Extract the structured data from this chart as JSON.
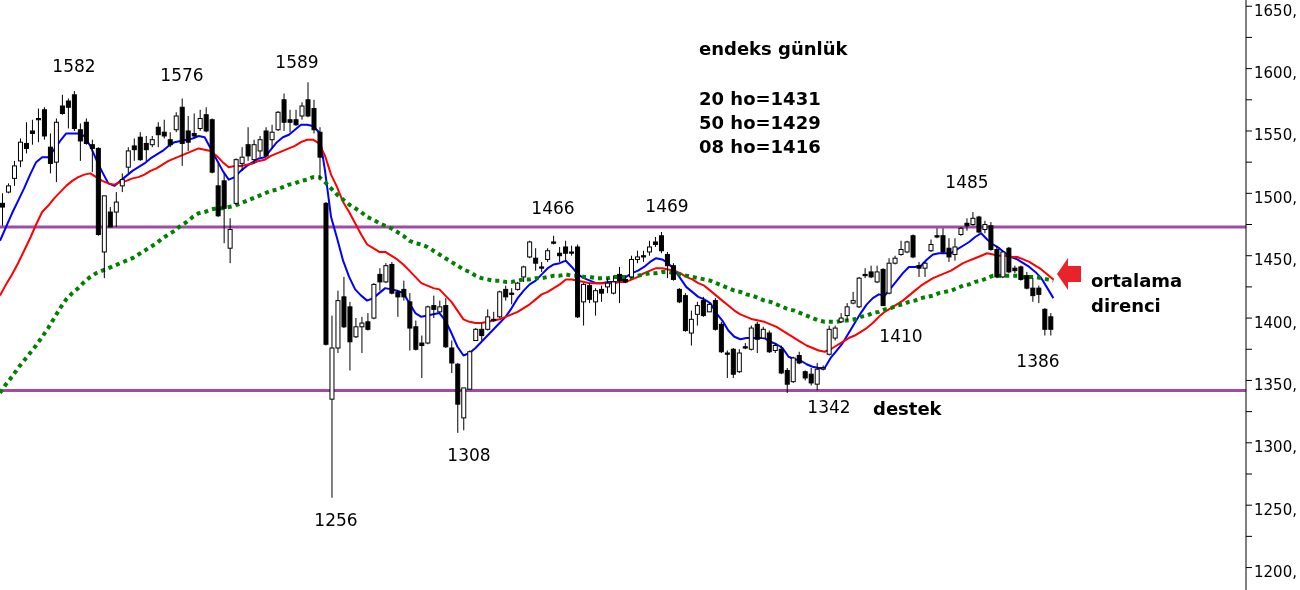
{
  "chart_data": {
    "type": "candlestick",
    "categories": [
      null,
      null,
      null,
      null,
      null,
      null,
      null,
      null,
      null,
      null,
      null,
      null,
      null,
      null,
      null,
      null,
      null,
      null,
      null,
      null,
      null,
      null,
      null,
      null,
      null,
      null,
      null,
      null,
      null,
      null,
      null,
      null,
      null,
      null,
      null,
      null,
      null,
      null,
      null,
      null,
      null,
      null,
      null,
      null,
      null,
      null,
      null,
      null,
      null,
      null,
      null,
      null,
      null,
      null,
      null,
      null,
      null,
      null,
      null,
      null,
      null,
      null,
      null,
      null,
      null,
      null,
      null,
      null,
      null,
      null,
      null,
      null,
      null,
      null,
      null,
      null,
      null,
      null,
      null,
      null,
      null,
      null,
      null,
      null,
      null,
      null,
      null,
      null,
      null,
      null,
      null,
      null,
      null,
      null,
      null,
      null,
      null,
      null,
      null,
      null,
      null,
      null,
      null,
      null,
      null,
      null,
      null,
      null,
      null,
      null,
      null,
      null,
      null,
      null,
      null,
      null,
      null,
      null,
      null,
      null,
      null,
      null,
      null,
      null,
      null,
      null,
      null,
      null,
      null,
      null,
      null,
      null,
      null,
      null,
      null,
      null,
      null,
      null,
      null,
      null,
      null,
      null,
      null,
      null,
      null,
      null,
      null,
      null,
      null,
      null,
      null,
      null,
      null,
      null,
      null,
      null,
      null,
      null,
      null,
      null,
      null,
      null,
      null,
      null,
      null,
      null,
      null,
      null,
      null,
      null,
      null,
      null,
      null,
      null,
      null,
      null,
      null,
      null,
      null,
      null,
      null,
      null,
      null,
      null,
      null,
      null,
      null,
      null,
      null,
      null,
      null,
      null,
      null,
      null,
      null,
      null,
      null,
      null,
      null,
      null,
      null,
      null,
      null,
      null,
      null,
      null,
      null,
      null
    ],
    "ohlc": [
      [
        1492,
        1500,
        1474,
        1489
      ],
      [
        1501,
        1508,
        1500,
        1506
      ],
      [
        1512,
        1526,
        1506,
        1522
      ],
      [
        1526,
        1544,
        1521,
        1541
      ],
      [
        1540,
        1557,
        1532,
        1536
      ],
      [
        1550,
        1559,
        1539,
        1548
      ],
      [
        1560,
        1568,
        1541,
        1559
      ],
      [
        1567,
        1569,
        1543,
        1546
      ],
      [
        1537,
        1548,
        1516,
        1524
      ],
      [
        1525,
        1560,
        1509,
        1557
      ],
      [
        1570,
        1579,
        1563,
        1564
      ],
      [
        1574,
        1576,
        1552,
        1569
      ],
      [
        1579,
        1582,
        1550,
        1552
      ],
      [
        1551,
        1556,
        1526,
        1542
      ],
      [
        1557,
        1560,
        1539,
        1540
      ],
      [
        1539,
        1543,
        1517,
        1536
      ],
      [
        1536,
        1537,
        1466,
        1467
      ],
      [
        1453,
        1498,
        1432,
        1498
      ],
      [
        1485,
        1489,
        1473,
        1473
      ],
      [
        1485,
        1501,
        1473,
        1493
      ],
      [
        1506,
        1516,
        1501,
        1511
      ],
      [
        1521,
        1537,
        1516,
        1534
      ],
      [
        1538,
        1544,
        1526,
        1535
      ],
      [
        1545,
        1549,
        1526,
        1527
      ],
      [
        1540,
        1546,
        1526,
        1535
      ],
      [
        1539,
        1546,
        1537,
        1543
      ],
      [
        1553,
        1557,
        1537,
        1547
      ],
      [
        1549,
        1559,
        1544,
        1546
      ],
      [
        1543,
        1549,
        1537,
        1539
      ],
      [
        1551,
        1565,
        1549,
        1562
      ],
      [
        1569,
        1576,
        1522,
        1540
      ],
      [
        1550,
        1562,
        1534,
        1541
      ],
      [
        1548,
        1564,
        1545,
        1546
      ],
      [
        1552,
        1567,
        1550,
        1560
      ],
      [
        1563,
        1569,
        1549,
        1550
      ],
      [
        1559,
        1560,
        1516,
        1517
      ],
      [
        1506,
        1524,
        1481,
        1482
      ],
      [
        1510,
        1516,
        1460,
        1488
      ],
      [
        1456,
        1480,
        1444,
        1471
      ],
      [
        1492,
        1528,
        1491,
        1527
      ],
      [
        1524,
        1537,
        1518,
        1529
      ],
      [
        1539,
        1553,
        1526,
        1530
      ],
      [
        1527,
        1543,
        1524,
        1539
      ],
      [
        1534,
        1546,
        1529,
        1543
      ],
      [
        1550,
        1553,
        1529,
        1530
      ],
      [
        1543,
        1555,
        1536,
        1549
      ],
      [
        1551,
        1566,
        1550,
        1565
      ],
      [
        1575,
        1580,
        1550,
        1557
      ],
      [
        1559,
        1567,
        1549,
        1557
      ],
      [
        1559,
        1567,
        1554,
        1555
      ],
      [
        1562,
        1573,
        1559,
        1570
      ],
      [
        1575,
        1589,
        1561,
        1562
      ],
      [
        1568,
        1575,
        1548,
        1551
      ],
      [
        1549,
        1553,
        1512,
        1529
      ],
      [
        1492,
        1493,
        1378,
        1379
      ],
      [
        1335,
        1402,
        1256,
        1376
      ],
      [
        1376,
        1422,
        1372,
        1414
      ],
      [
        1417,
        1433,
        1392,
        1393
      ],
      [
        1409,
        1413,
        1358,
        1381
      ],
      [
        1385,
        1400,
        1384,
        1393
      ],
      [
        1393,
        1401,
        1372,
        1396
      ],
      [
        1397,
        1404,
        1390,
        1391
      ],
      [
        1400,
        1428,
        1399,
        1427
      ],
      [
        1435,
        1440,
        1422,
        1429
      ],
      [
        1429,
        1444,
        1428,
        1442
      ],
      [
        1443,
        1445,
        1419,
        1420
      ],
      [
        1421,
        1422,
        1401,
        1417
      ],
      [
        1423,
        1430,
        1414,
        1417
      ],
      [
        1413,
        1420,
        1374,
        1392
      ],
      [
        1393,
        1398,
        1374,
        1375
      ],
      [
        1380,
        1386,
        1352,
        1378
      ],
      [
        1380,
        1410,
        1379,
        1409
      ],
      [
        1410,
        1418,
        1400,
        1407
      ],
      [
        1405,
        1414,
        1404,
        1409
      ],
      [
        1410,
        1416,
        1376,
        1377
      ],
      [
        1376,
        1382,
        1356,
        1364
      ],
      [
        1363,
        1364,
        1308,
        1331
      ],
      [
        1320,
        1344,
        1310,
        1344
      ],
      [
        1343,
        1374,
        1343,
        1373
      ],
      [
        1382,
        1392,
        1382,
        1391
      ],
      [
        1391,
        1396,
        1382,
        1386
      ],
      [
        1391,
        1407,
        1390,
        1401
      ],
      [
        1399,
        1405,
        1397,
        1398
      ],
      [
        1401,
        1422,
        1400,
        1421
      ],
      [
        1423,
        1426,
        1414,
        1417
      ],
      [
        1420,
        1424,
        1411,
        1419
      ],
      [
        1423,
        1429,
        1422,
        1428
      ],
      [
        1433,
        1442,
        1429,
        1441
      ],
      [
        1449,
        1462,
        1448,
        1461
      ],
      [
        1448,
        1456,
        1438,
        1444
      ],
      [
        1441,
        1445,
        1437,
        1440
      ],
      [
        1447,
        1456,
        1445,
        1454
      ],
      [
        1461,
        1466,
        1459,
        1460
      ],
      [
        1452,
        1457,
        1445,
        1450
      ],
      [
        1457,
        1462,
        1445,
        1452
      ],
      [
        1453,
        1458,
        1450,
        1452
      ],
      [
        1457,
        1459,
        1400,
        1401
      ],
      [
        1413,
        1428,
        1394,
        1427
      ],
      [
        1426,
        1428,
        1412,
        1415
      ],
      [
        1413,
        1424,
        1402,
        1422
      ],
      [
        1423,
        1426,
        1413,
        1420
      ],
      [
        1425,
        1432,
        1420,
        1428
      ],
      [
        1420,
        1434,
        1419,
        1429
      ],
      [
        1435,
        1441,
        1412,
        1430
      ],
      [
        1431,
        1434,
        1428,
        1429
      ],
      [
        1433,
        1450,
        1432,
        1447
      ],
      [
        1447,
        1454,
        1444,
        1449
      ],
      [
        1450,
        1454,
        1445,
        1449
      ],
      [
        1453,
        1462,
        1450,
        1457
      ],
      [
        1461,
        1465,
        1457,
        1459
      ],
      [
        1466,
        1469,
        1452,
        1454
      ],
      [
        1451,
        1453,
        1432,
        1442
      ],
      [
        1442,
        1444,
        1430,
        1431
      ],
      [
        1423,
        1424,
        1412,
        1413
      ],
      [
        1418,
        1420,
        1389,
        1390
      ],
      [
        1388,
        1406,
        1378,
        1399
      ],
      [
        1403,
        1413,
        1394,
        1410
      ],
      [
        1414,
        1417,
        1401,
        1402
      ],
      [
        1405,
        1412,
        1405,
        1411
      ],
      [
        1414,
        1416,
        1390,
        1391
      ],
      [
        1395,
        1397,
        1372,
        1373
      ],
      [
        1372,
        1374,
        1352,
        1371
      ],
      [
        1375,
        1376,
        1352,
        1355
      ],
      [
        1357,
        1375,
        1356,
        1372
      ],
      [
        1377,
        1380,
        1375,
        1376
      ],
      [
        1375,
        1394,
        1374,
        1392
      ],
      [
        1395,
        1397,
        1372,
        1383
      ],
      [
        1384,
        1393,
        1383,
        1391
      ],
      [
        1388,
        1390,
        1372,
        1373
      ],
      [
        1374,
        1380,
        1372,
        1378
      ],
      [
        1375,
        1378,
        1355,
        1356
      ],
      [
        1358,
        1360,
        1340,
        1347
      ],
      [
        1349,
        1369,
        1348,
        1368
      ],
      [
        1370,
        1373,
        1363,
        1364
      ],
      [
        1357,
        1358,
        1350,
        1352
      ],
      [
        1355,
        1360,
        1346,
        1348
      ],
      [
        1347,
        1364,
        1342,
        1359
      ],
      [
        1359,
        1362,
        1358,
        1360
      ],
      [
        1371,
        1394,
        1370,
        1391
      ],
      [
        1384,
        1394,
        1382,
        1392
      ],
      [
        1397,
        1404,
        1396,
        1400
      ],
      [
        1402,
        1412,
        1398,
        1409
      ],
      [
        1412,
        1421,
        1411,
        1414
      ],
      [
        1409,
        1433,
        1408,
        1432
      ],
      [
        1435,
        1440,
        1432,
        1434
      ],
      [
        1437,
        1442,
        1432,
        1433
      ],
      [
        1429,
        1442,
        1428,
        1437
      ],
      [
        1439,
        1440,
        1410,
        1410
      ],
      [
        1420,
        1448,
        1419,
        1444
      ],
      [
        1444,
        1450,
        1443,
        1448
      ],
      [
        1451,
        1462,
        1450,
        1455
      ],
      [
        1453,
        1462,
        1452,
        1461
      ],
      [
        1466,
        1467,
        1448,
        1449
      ],
      [
        1442,
        1445,
        1433,
        1440
      ],
      [
        1440,
        1445,
        1433,
        1444
      ],
      [
        1454,
        1463,
        1453,
        1459
      ],
      [
        1466,
        1472,
        1464,
        1465
      ],
      [
        1466,
        1472,
        1452,
        1453
      ],
      [
        1456,
        1464,
        1445,
        1449
      ],
      [
        1451,
        1464,
        1446,
        1457
      ],
      [
        1467,
        1473,
        1466,
        1472
      ],
      [
        1476,
        1480,
        1470,
        1474
      ],
      [
        1475,
        1485,
        1474,
        1480
      ],
      [
        1481,
        1482,
        1468,
        1469
      ],
      [
        1471,
        1478,
        1468,
        1475
      ],
      [
        1474,
        1477,
        1454,
        1455
      ],
      [
        1455,
        1458,
        1432,
        1433
      ],
      [
        1433,
        1454,
        1432,
        1453
      ],
      [
        1456,
        1457,
        1436,
        1437
      ],
      [
        1440,
        1442,
        1436,
        1438
      ],
      [
        1441,
        1442,
        1430,
        1431
      ],
      [
        1434,
        1437,
        1423,
        1424
      ],
      [
        1424,
        1432,
        1413,
        1418
      ],
      [
        1424,
        1426,
        1412,
        1419
      ],
      [
        1407,
        1408,
        1386,
        1391
      ],
      [
        1401,
        1404,
        1386,
        1391
      ],
      null,
      null,
      null,
      null,
      null,
      null,
      null,
      null,
      null,
      null,
      null,
      null,
      null,
      null,
      null,
      null,
      null,
      null,
      null,
      null,
      null,
      null,
      null,
      null,
      null,
      null,
      null,
      null,
      null,
      null,
      null,
      null
    ],
    "series": [
      {
        "type": "line",
        "color": "#0000ff",
        "values": [
          1462,
          1473,
          1484,
          1494,
          1504,
          1515,
          1525,
          1529,
          1529,
          1535,
          1542,
          1548,
          1548,
          1548,
          1546,
          1538,
          1527,
          1517,
          1508,
          1506,
          1510,
          1514,
          1518,
          1521,
          1524,
          1528,
          1531,
          1534,
          1538,
          1541,
          1542,
          1543,
          1544,
          1546,
          1545,
          1536,
          1527,
          1518,
          1511,
          1513,
          1518,
          1522,
          1525,
          1528,
          1529,
          1535,
          1541,
          1545,
          1547,
          1551,
          1555,
          1555,
          1554,
          1549,
          1518,
          1481,
          1464,
          1446,
          1433,
          1423,
          1418,
          1414,
          1416,
          1420,
          1424,
          1423,
          1422,
          1420,
          1412,
          1404,
          1401,
          1402,
          1403,
          1404,
          1398,
          1388,
          1377,
          1370,
          1372,
          1376,
          1381,
          1386,
          1391,
          1396,
          1401,
          1408,
          1416,
          1422,
          1427,
          1430,
          1435,
          1440,
          1443,
          1444,
          1446,
          1441,
          1435,
          1432,
          1430,
          1428,
          1428,
          1429,
          1429,
          1429,
          1433,
          1436,
          1438,
          1441,
          1445,
          1448,
          1447,
          1444,
          1439,
          1432,
          1425,
          1421,
          1417,
          1415,
          1412,
          1404,
          1398,
          1390,
          1385,
          1383,
          1384,
          1384,
          1384,
          1384,
          1381,
          1379,
          1376,
          1369,
          1367,
          1366,
          1363,
          1361,
          1360,
          1360,
          1368,
          1374,
          1380,
          1388,
          1396,
          1404,
          1411,
          1416,
          1419,
          1418,
          1424,
          1430,
          1436,
          1441,
          1441,
          1442,
          1447,
          1451,
          1452,
          1452,
          1452,
          1455,
          1458,
          1461,
          1465,
          1468,
          1463,
          1459,
          1456,
          1452,
          1449,
          1447,
          1444,
          1441,
          1437,
          1432,
          1424,
          1416,
          null,
          null,
          null,
          null,
          null,
          null,
          null,
          null,
          null,
          null,
          null,
          null,
          null,
          null,
          null,
          null,
          null,
          null,
          null,
          null,
          null,
          null,
          null,
          null,
          null,
          null,
          null,
          null,
          null,
          null,
          null,
          null
        ]
      },
      {
        "type": "line",
        "color": "#ff0000",
        "values": [
          1418,
          1427,
          1435,
          1444,
          1454,
          1464,
          1475,
          1485,
          1490,
          1496,
          1501,
          1506,
          1510,
          1513,
          1515,
          1516,
          1513,
          1510,
          1508,
          1507,
          1509,
          1510,
          1512,
          1513,
          1515,
          1518,
          1520,
          1523,
          1526,
          1528,
          1530,
          1532,
          1534,
          1536,
          1535,
          1534,
          1530,
          1525,
          1521,
          1522,
          1522,
          1523,
          1524,
          1526,
          1527,
          1530,
          1532,
          1534,
          1536,
          1538,
          1541,
          1543,
          1543,
          1540,
          1530,
          1515,
          1505,
          1493,
          1485,
          1476,
          1467,
          1459,
          1456,
          1453,
          1453,
          1450,
          1447,
          1443,
          1438,
          1433,
          1428,
          1426,
          1424,
          1423,
          1418,
          1413,
          1406,
          1399,
          1397,
          1396,
          1396,
          1397,
          1398,
          1399,
          1401,
          1403,
          1405,
          1408,
          1411,
          1415,
          1419,
          1421,
          1424,
          1427,
          1431,
          1431,
          1430,
          1429,
          1428,
          1428,
          1428,
          1428,
          1428,
          1429,
          1429,
          1431,
          1433,
          1436,
          1438,
          1440,
          1440,
          1439,
          1438,
          1436,
          1433,
          1431,
          1428,
          1426,
          1422,
          1418,
          1414,
          1410,
          1406,
          1403,
          1401,
          1399,
          1398,
          1397,
          1395,
          1393,
          1390,
          1387,
          1384,
          1381,
          1378,
          1376,
          1374,
          1373,
          1375,
          1378,
          1381,
          1384,
          1386,
          1389,
          1392,
          1396,
          1401,
          1405,
          1408,
          1411,
          1414,
          1418,
          1422,
          1426,
          1429,
          1432,
          1434,
          1436,
          1438,
          1441,
          1444,
          1446,
          1448,
          1450,
          1452,
          1451,
          1450,
          1450,
          1449,
          1449,
          1447,
          1445,
          1442,
          1439,
          1435,
          1431,
          null,
          null,
          null,
          null,
          null,
          null,
          null,
          null,
          null,
          null,
          null,
          null,
          null,
          null,
          null,
          null,
          null,
          null,
          null,
          null,
          null,
          null,
          null,
          null,
          null,
          null,
          null,
          null,
          null,
          null,
          null,
          null
        ]
      },
      {
        "type": "line",
        "color": "#008000",
        "line_style": "dotted",
        "values": [
          1340,
          1347,
          1353,
          1360,
          1366,
          1372,
          1378,
          1385,
          1392,
          1400,
          1408,
          1415,
          1420,
          1424,
          1429,
          1433,
          1436,
          1438,
          1440,
          1442,
          1444,
          1446,
          1448,
          1451,
          1454,
          1457,
          1460,
          1464,
          1467,
          1470,
          1474,
          1477,
          1481,
          1484,
          1485,
          1487,
          1488,
          1488,
          1489,
          1490,
          1492,
          1494,
          1496,
          1498,
          1500,
          1502,
          1503,
          1505,
          1507,
          1508,
          1510,
          1511,
          1513,
          1513,
          1509,
          1504,
          1499,
          1495,
          1491,
          1488,
          1485,
          1481,
          1479,
          1476,
          1474,
          1472,
          1469,
          1466,
          1462,
          1460,
          1459,
          1457,
          1454,
          1451,
          1448,
          1445,
          1442,
          1439,
          1437,
          1434,
          1432,
          1431,
          1430,
          1430,
          1429,
          1429,
          1430,
          1431,
          1431,
          1432,
          1432,
          1433,
          1434,
          1434,
          1435,
          1434,
          1434,
          1433,
          1433,
          1432,
          1432,
          1432,
          1433,
          1433,
          1433,
          1433,
          1434,
          1435,
          1436,
          1436,
          1437,
          1437,
          1436,
          1435,
          1434,
          1433,
          1432,
          1431,
          1430,
          1428,
          1426,
          1424,
          1422,
          1421,
          1419,
          1418,
          1416,
          1414,
          1413,
          1411,
          1409,
          1407,
          1406,
          1404,
          1402,
          1400,
          1398,
          1397,
          1397,
          1397,
          1398,
          1398,
          1399,
          1401,
          1402,
          1404,
          1405,
          1407,
          1408,
          1410,
          1411,
          1413,
          1414,
          1416,
          1417,
          1418,
          1420,
          1421,
          1422,
          1424,
          1426,
          1427,
          1429,
          1430,
          1432,
          1434,
          1434,
          1434,
          1434,
          1434,
          1433,
          1433,
          1433,
          1432,
          1431,
          1430,
          null,
          null,
          null,
          null,
          null,
          null,
          null,
          null,
          null,
          null,
          null,
          null,
          null,
          null,
          null,
          null,
          null,
          null,
          null,
          null,
          null,
          null,
          null,
          null,
          null,
          null,
          null,
          null,
          null,
          null,
          null,
          null
        ]
      }
    ],
    "marker": "none",
    "ylim": [
      1182,
      1655
    ],
    "yticks": [
      {
        "value": 1200,
        "label": "1200,"
      },
      {
        "value": 1225,
        "label": null
      },
      {
        "value": 1250,
        "label": "1250,"
      },
      {
        "value": 1275,
        "label": null
      },
      {
        "value": 1300,
        "label": "1300,"
      },
      {
        "value": 1325,
        "label": null
      },
      {
        "value": 1350,
        "label": "1350,"
      },
      {
        "value": 1375,
        "label": null
      },
      {
        "value": 1400,
        "label": "1400,"
      },
      {
        "value": 1425,
        "label": null
      },
      {
        "value": 1450,
        "label": "1450,"
      },
      {
        "value": 1475,
        "label": null
      },
      {
        "value": 1500,
        "label": "1500,"
      },
      {
        "value": 1525,
        "label": null
      },
      {
        "value": 1550,
        "label": "1550,"
      },
      {
        "value": 1575,
        "label": null
      },
      {
        "value": 1600,
        "label": "1600,"
      },
      {
        "value": 1625,
        "label": null
      },
      {
        "value": 1650,
        "label": "1650,"
      }
    ],
    "ref_lines": [
      {
        "axis": "y",
        "value": 1473,
        "color": "#a04ca4"
      },
      {
        "axis": "y",
        "value": 1342,
        "color": "#a04ca4"
      }
    ],
    "annotations": [
      "1582",
      "1576",
      "1589",
      "1256",
      "1308",
      "1466",
      "1469",
      "1485",
      "1410",
      "1342",
      "1386",
      "endeks günlük",
      "20 ho=1431",
      "50 ho=1429",
      "08 ho=1416",
      "ortalama direnci",
      "destek"
    ]
  }
}
